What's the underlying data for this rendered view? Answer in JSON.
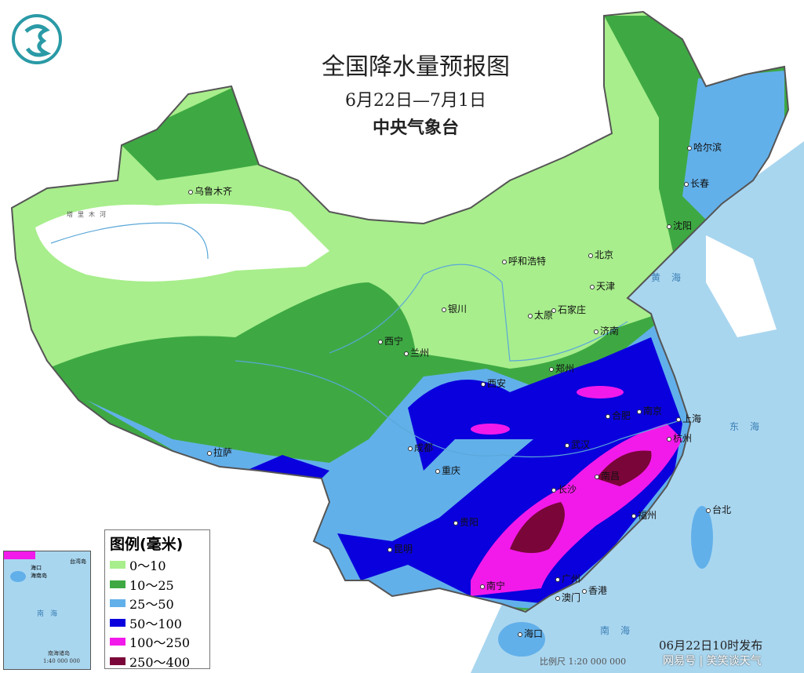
{
  "header": {
    "title": "全国降水量预报图",
    "date_range": "6月22日—7月1日",
    "issuer": "中央气象台"
  },
  "legend": {
    "title": "图例(毫米)",
    "items": [
      {
        "label": "0～10",
        "color": "#a8ee8c"
      },
      {
        "label": "10～25",
        "color": "#3ea943"
      },
      {
        "label": "25～50",
        "color": "#62b0ea"
      },
      {
        "label": "50～100",
        "color": "#0a00dd"
      },
      {
        "label": "100～250",
        "color": "#f21aea"
      },
      {
        "label": "250～400",
        "color": "#7a0538"
      }
    ]
  },
  "cities": [
    "乌鲁木齐",
    "哈尔滨",
    "长春",
    "沈阳",
    "北京",
    "天津",
    "呼和浩特",
    "石家庄",
    "太原",
    "银川",
    "西宁",
    "兰州",
    "济南",
    "郑州",
    "西安",
    "合肥",
    "南京",
    "上海",
    "武汉",
    "杭州",
    "成都",
    "重庆",
    "拉萨",
    "南昌",
    "长沙",
    "福州",
    "台北",
    "贵阳",
    "昆明",
    "南宁",
    "广州",
    "香港",
    "澳门",
    "海口"
  ],
  "seas": [
    "黄海",
    "东海",
    "南海"
  ],
  "river_label": "塔里木河",
  "inset": {
    "sea": "南海",
    "title": "南海诸岛",
    "scale": "1:40 000 000",
    "labels": [
      "海口",
      "海南岛",
      "台湾岛"
    ]
  },
  "footer": {
    "scale": "比例尺 1:20 000 000",
    "issued": "06月22日10时发布",
    "watermark": "网易号 | 笑笑谈天气"
  },
  "colors": {
    "sea": "#a9d6ef",
    "land_outside": "#ffffff",
    "logo": "#2a9aa6"
  }
}
